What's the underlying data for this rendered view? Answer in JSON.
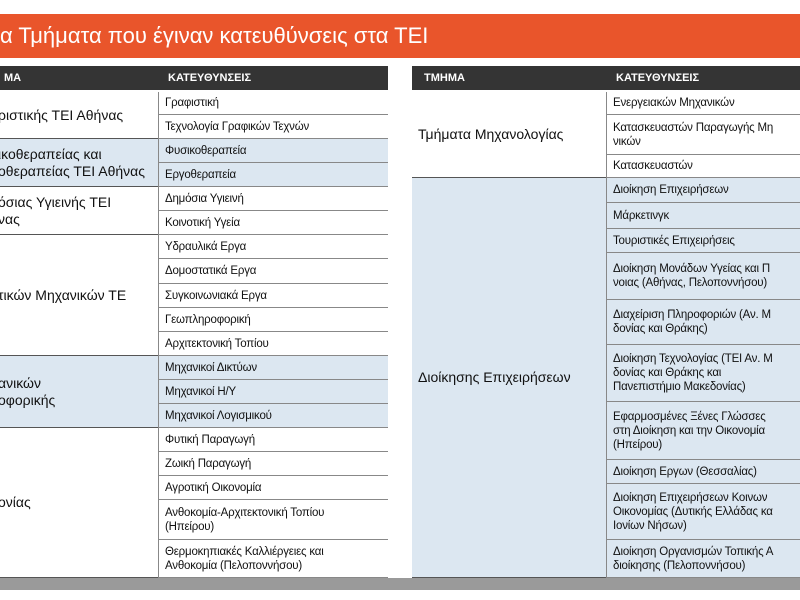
{
  "title": "α Τμήματα που έγιναν κατευθύνσεις στα ΤΕΙ",
  "tables": [
    {
      "header": [
        "ΜΑ",
        "ΚΑΤΕΥΘΥΝΣΕΙΣ"
      ],
      "rows": [
        {
          "department": "ριστικής ΤΕΙ Αθήνας",
          "directions": [
            "Γραφιστική",
            "Τεχνολογία Γραφικών Τεχνών"
          ]
        },
        {
          "department": "ικοθεραπείας και\nοθεραπείας ΤΕΙ Αθήνας",
          "directions": [
            "Φυσικοθεραπεία",
            "Εργοθεραπεία"
          ]
        },
        {
          "department": "όσιας Υγιεινής ΤΕΙ\nνας",
          "directions": [
            "Δημόσια Υγιεινή",
            "Κοινοτική Υγεία"
          ]
        },
        {
          "department": "τικών Μηχανικών ΤΕ",
          "directions": [
            "Υδραυλικά Εργα",
            "Δομοστατικά Εργα",
            "Συγκοινωνιακά Εργα",
            "Γεωπληροφορική",
            "Αρχιτεκτονική Τοπίου"
          ]
        },
        {
          "department": "ανικών\nοφορικής",
          "directions": [
            "Μηχανικοί Δικτύων",
            "Μηχανικοί Η/Υ",
            "Μηχανικοί Λογισμικού"
          ]
        },
        {
          "department": "ονίας",
          "directions": [
            "Φυτική Παραγωγή",
            "Ζωική Παραγωγή",
            "Αγροτική Οικονομία",
            "Ανθοκομία-Αρχιτεκτονική Τοπίου\n(Ηπείρου)",
            "Θερμοκηπιακές Καλλιέργειες και\nΑνθοκομία (Πελοποννήσου)"
          ]
        }
      ]
    },
    {
      "header": [
        "ΤΜΗΜΑ",
        "ΚΑΤΕΥΘΥΝΣΕΙΣ"
      ],
      "rows": [
        {
          "department": "Τμήματα Μηχανολογίας",
          "directions": [
            "Ενεργειακών Μηχανικών",
            "Κατασκευαστών Παραγωγής Μη\nνικών",
            "Κατασκευαστών"
          ]
        },
        {
          "department": "Διοίκησης Επιχειρήσεων",
          "directions": [
            "Διοίκηση Επιχειρήσεων",
            "Μάρκετινγκ",
            "Τουριστικές Επιχειρήσεις",
            "Διοίκηση Μονάδων Υγείας και Π\nνοιας (Αθήνας, Πελοποννήσου)",
            "Διαχείριση Πληροφοριών (Αν. Μ\nδονίας και Θράκης)",
            "Διοίκηση Τεχνολογίας (ΤΕΙ Αν. Μ\nδονίας και Θράκης και\nΠανεπιστήμιο Μακεδονίας)",
            "Εφαρμοσμένες Ξένες Γλώσσες\nστη Διοίκηση και την Οικονομία\n(Ηπείρου)",
            "Διοίκηση Εργων (Θεσσαλίας)",
            "Διοίκηση Επιχειρήσεων Κοινων\nΟικονομίας (Δυτικής Ελλάδας κα\nΙονίων Νήσων)",
            "Διοίκηση Οργανισμών Τοπικής Α\nδιοίκησης (Πελοποννήσου)"
          ]
        }
      ]
    }
  ]
}
